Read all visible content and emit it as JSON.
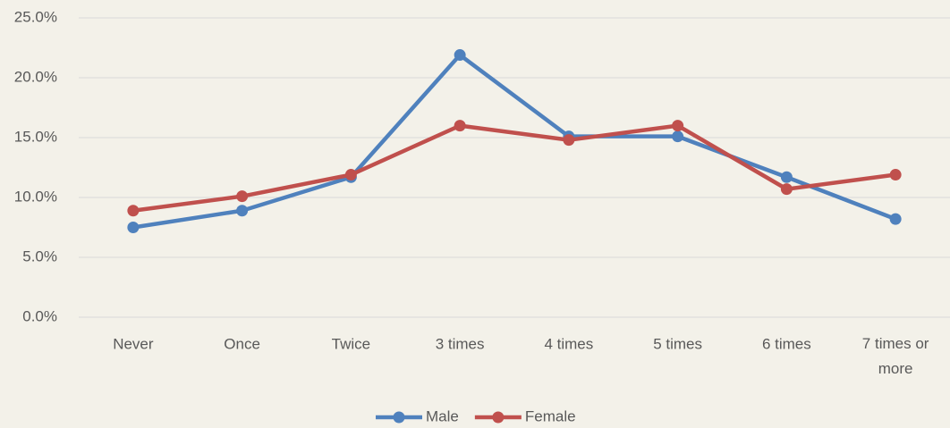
{
  "chart_data": {
    "type": "line",
    "categories": [
      "Never",
      "Once",
      "Twice",
      "3 times",
      "4 times",
      "5 times",
      "6 times",
      "7 times or more"
    ],
    "series": [
      {
        "name": "Male",
        "color": "#4f81bd",
        "values": [
          7.5,
          8.9,
          11.7,
          21.9,
          15.1,
          15.1,
          11.7,
          8.2
        ]
      },
      {
        "name": "Female",
        "color": "#c0504d",
        "values": [
          8.9,
          10.1,
          11.9,
          16.0,
          14.8,
          16.0,
          10.7,
          11.9
        ]
      }
    ],
    "ylim": [
      0,
      25
    ],
    "yticks": [
      {
        "value": 0,
        "label": "0.0%"
      },
      {
        "value": 5,
        "label": "5.0%"
      },
      {
        "value": 10,
        "label": "10.0%"
      },
      {
        "value": 15,
        "label": "15.0%"
      },
      {
        "value": 20,
        "label": "20.0%"
      },
      {
        "value": 25,
        "label": "25.0%"
      }
    ],
    "grid": true,
    "legend": "bottom"
  }
}
